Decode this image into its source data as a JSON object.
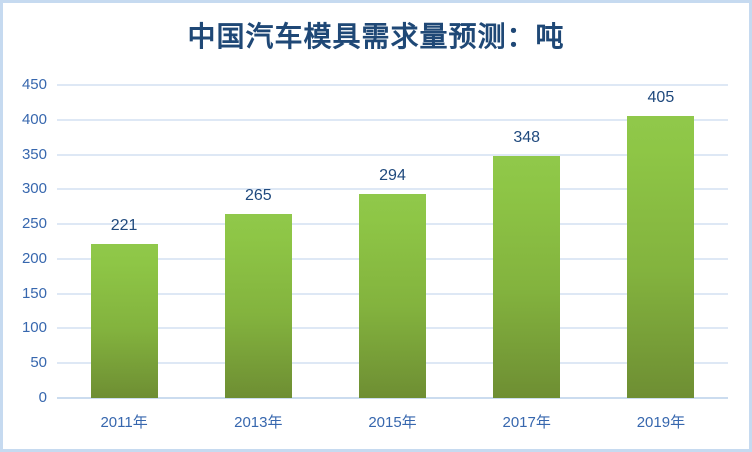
{
  "chart_data": {
    "type": "bar",
    "title": "中国汽车模具需求量预测：吨",
    "categories": [
      "2011年",
      "2013年",
      "2015年",
      "2017年",
      "2019年"
    ],
    "values": [
      221,
      265,
      294,
      348,
      405
    ],
    "y_ticks": [
      0,
      50,
      100,
      150,
      200,
      250,
      300,
      350,
      400,
      450
    ],
    "ylim": [
      0,
      450
    ],
    "xlabel": "",
    "ylabel": "",
    "legend": "none",
    "grid": "horizontal",
    "colors": {
      "bar_top": "#8EC646",
      "bar_bottom": "#6E8E33",
      "title_text": "#1F4876",
      "tick_text": "#3767AE",
      "value_label_text": "#1F497D",
      "gridline": "#DEE8F5",
      "axis_line": "#CBDCEF",
      "frame_border": "#C6DAF0",
      "background": "#FFFFFF"
    }
  }
}
